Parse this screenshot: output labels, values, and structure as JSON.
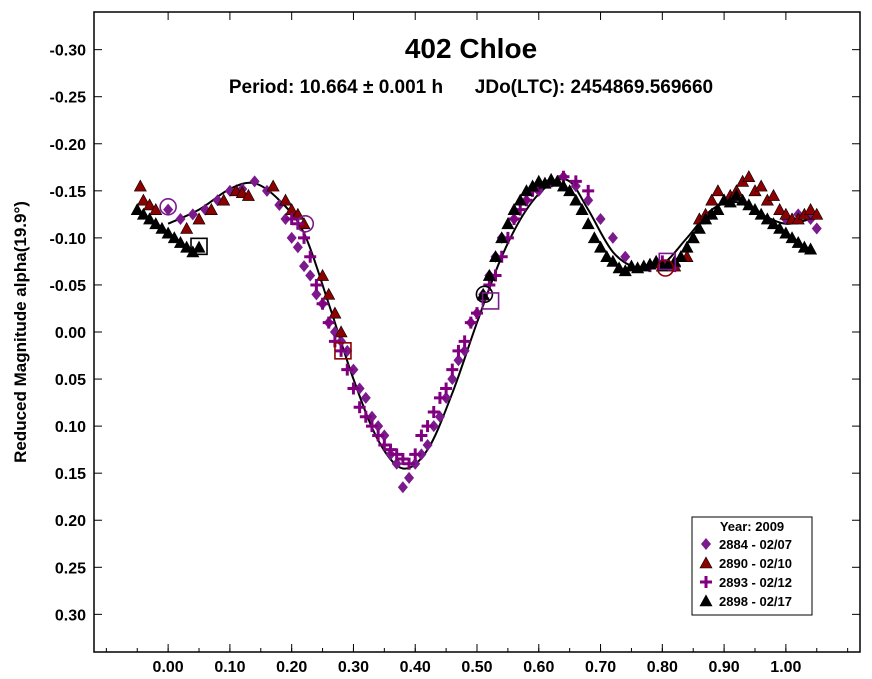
{
  "chart_data": {
    "type": "scatter",
    "title": "402 Chloe",
    "subtitle": "Period: 10.664 ± 0.001 h      JDo(LTC): 2454869.569660",
    "xlabel": "",
    "ylabel": "Reduced Magnitude alpha(19.9°)",
    "xlim": [
      -0.12,
      1.12
    ],
    "ylim": [
      -0.34,
      0.34
    ],
    "y_inverted": true,
    "x_ticks": [
      "0.00",
      "0.10",
      "0.20",
      "0.30",
      "0.40",
      "0.50",
      "0.60",
      "0.70",
      "0.80",
      "0.90",
      "1.00"
    ],
    "y_ticks": [
      "-0.30",
      "-0.25",
      "-0.20",
      "-0.15",
      "-0.10",
      "-0.05",
      "0.00",
      "0.05",
      "0.10",
      "0.15",
      "0.20",
      "0.25",
      "0.30"
    ],
    "grid": false,
    "legend": {
      "title": "Year: 2009",
      "placement": "bottom-right"
    },
    "fit_curve": {
      "color": "#000000",
      "x": [
        0.0,
        0.05,
        0.1,
        0.14,
        0.18,
        0.22,
        0.26,
        0.3,
        0.34,
        0.38,
        0.42,
        0.46,
        0.5,
        0.54,
        0.58,
        0.62,
        0.65,
        0.68,
        0.72,
        0.76,
        0.8,
        0.84,
        0.88,
        0.92,
        0.96,
        1.0,
        1.04
      ],
      "y": [
        -0.115,
        -0.13,
        -0.152,
        -0.158,
        -0.14,
        -0.105,
        -0.03,
        0.05,
        0.115,
        0.145,
        0.125,
        0.065,
        -0.01,
        -0.08,
        -0.13,
        -0.158,
        -0.16,
        -0.13,
        -0.085,
        -0.068,
        -0.072,
        -0.1,
        -0.13,
        -0.138,
        -0.125,
        -0.115,
        -0.12
      ]
    },
    "series": [
      {
        "name": "2884 - 02/07",
        "marker": "diamond",
        "color": "#7b1a8c",
        "x": [
          0.0,
          0.02,
          0.04,
          0.06,
          0.08,
          0.1,
          0.12,
          0.14,
          0.16,
          0.18,
          0.19,
          0.2,
          0.21,
          0.22,
          0.23,
          0.24,
          0.25,
          0.26,
          0.27,
          0.28,
          0.29,
          0.3,
          0.31,
          0.32,
          0.33,
          0.34,
          0.35,
          0.36,
          0.37,
          0.38,
          0.39,
          0.4,
          0.41,
          0.42,
          0.43,
          0.44,
          0.45,
          0.46,
          0.47,
          0.48,
          0.49,
          0.5,
          0.51,
          0.52,
          0.53,
          0.54,
          0.56,
          0.58,
          0.6,
          0.62,
          0.64,
          0.66,
          0.68,
          0.7,
          0.72,
          0.74,
          1.0,
          1.02,
          1.04,
          1.05
        ],
        "y": [
          -0.13,
          -0.12,
          -0.125,
          -0.13,
          -0.14,
          -0.15,
          -0.152,
          -0.16,
          -0.15,
          -0.135,
          -0.12,
          -0.1,
          -0.09,
          -0.07,
          -0.06,
          -0.04,
          -0.03,
          -0.01,
          0.0,
          0.01,
          0.02,
          0.04,
          0.06,
          0.07,
          0.09,
          0.1,
          0.11,
          0.13,
          0.14,
          0.165,
          0.155,
          0.14,
          0.13,
          0.12,
          0.1,
          0.09,
          0.07,
          0.05,
          0.03,
          0.02,
          -0.01,
          -0.02,
          -0.04,
          -0.06,
          -0.08,
          -0.1,
          -0.12,
          -0.14,
          -0.15,
          -0.16,
          -0.165,
          -0.155,
          -0.14,
          -0.12,
          -0.1,
          -0.08,
          -0.12,
          -0.125,
          -0.12,
          -0.11
        ]
      },
      {
        "name": "2890 - 02/10",
        "marker": "triangle",
        "color": "#8b0000",
        "x": [
          -0.045,
          -0.04,
          -0.03,
          -0.02,
          0.03,
          0.05,
          0.07,
          0.09,
          0.11,
          0.12,
          0.13,
          0.17,
          0.19,
          0.2,
          0.21,
          0.22,
          0.25,
          0.26,
          0.27,
          0.28,
          0.82,
          0.84,
          0.85,
          0.86,
          0.87,
          0.88,
          0.89,
          0.9,
          0.91,
          0.92,
          0.93,
          0.94,
          0.95,
          0.96,
          0.97,
          0.98,
          0.99,
          1.0,
          1.01,
          1.02,
          1.03,
          1.04,
          1.05
        ],
        "y": [
          -0.155,
          -0.14,
          -0.135,
          -0.13,
          -0.11,
          -0.12,
          -0.13,
          -0.14,
          -0.15,
          -0.148,
          -0.145,
          -0.155,
          -0.14,
          -0.13,
          -0.125,
          -0.115,
          -0.06,
          -0.04,
          -0.02,
          0.0,
          -0.07,
          -0.08,
          -0.1,
          -0.12,
          -0.125,
          -0.14,
          -0.15,
          -0.14,
          -0.145,
          -0.15,
          -0.16,
          -0.165,
          -0.15,
          -0.155,
          -0.14,
          -0.145,
          -0.13,
          -0.125,
          -0.12,
          -0.12,
          -0.125,
          -0.13,
          -0.125
        ]
      },
      {
        "name": "2893 - 02/12",
        "marker": "plus",
        "color": "#800080",
        "x": [
          0.2,
          0.21,
          0.22,
          0.23,
          0.24,
          0.25,
          0.26,
          0.27,
          0.28,
          0.29,
          0.3,
          0.31,
          0.32,
          0.33,
          0.34,
          0.35,
          0.36,
          0.37,
          0.38,
          0.39,
          0.4,
          0.41,
          0.42,
          0.43,
          0.44,
          0.45,
          0.46,
          0.47,
          0.48,
          0.49,
          0.5,
          0.51,
          0.52,
          0.53,
          0.54,
          0.55,
          0.56,
          0.57,
          0.58,
          0.59,
          0.6,
          0.62,
          0.64,
          0.66,
          0.68,
          0.78,
          0.8,
          0.82
        ],
        "y": [
          -0.12,
          -0.115,
          -0.1,
          -0.08,
          -0.05,
          -0.03,
          -0.01,
          0.01,
          0.02,
          0.04,
          0.06,
          0.08,
          0.09,
          0.1,
          0.11,
          0.12,
          0.125,
          0.13,
          0.135,
          0.14,
          0.13,
          0.11,
          0.1,
          0.085,
          0.07,
          0.06,
          0.04,
          0.02,
          0.01,
          -0.01,
          -0.02,
          -0.035,
          -0.05,
          -0.06,
          -0.08,
          -0.1,
          -0.12,
          -0.13,
          -0.14,
          -0.15,
          -0.155,
          -0.16,
          -0.165,
          -0.16,
          -0.15,
          -0.07,
          -0.075,
          -0.07
        ]
      },
      {
        "name": "2898 - 02/17",
        "marker": "triangle",
        "color": "#000000",
        "x": [
          -0.05,
          -0.04,
          -0.03,
          -0.02,
          -0.01,
          0.0,
          0.01,
          0.02,
          0.03,
          0.04,
          0.05,
          0.51,
          0.52,
          0.53,
          0.54,
          0.55,
          0.56,
          0.57,
          0.58,
          0.59,
          0.6,
          0.61,
          0.62,
          0.63,
          0.64,
          0.65,
          0.66,
          0.67,
          0.68,
          0.69,
          0.7,
          0.71,
          0.72,
          0.73,
          0.74,
          0.75,
          0.76,
          0.77,
          0.78,
          0.79,
          0.8,
          0.81,
          0.82,
          0.83,
          0.84,
          0.85,
          0.86,
          0.87,
          0.88,
          0.89,
          0.9,
          0.91,
          0.92,
          0.93,
          0.94,
          0.95,
          0.96,
          0.97,
          0.98,
          0.99,
          1.0,
          1.01,
          1.02,
          1.03,
          1.04
        ],
        "y": [
          -0.13,
          -0.125,
          -0.12,
          -0.115,
          -0.11,
          -0.105,
          -0.1,
          -0.095,
          -0.09,
          -0.085,
          -0.09,
          -0.04,
          -0.06,
          -0.08,
          -0.1,
          -0.115,
          -0.13,
          -0.14,
          -0.15,
          -0.155,
          -0.16,
          -0.158,
          -0.162,
          -0.16,
          -0.155,
          -0.15,
          -0.14,
          -0.13,
          -0.115,
          -0.1,
          -0.09,
          -0.08,
          -0.075,
          -0.068,
          -0.065,
          -0.07,
          -0.068,
          -0.07,
          -0.072,
          -0.075,
          -0.07,
          -0.072,
          -0.075,
          -0.08,
          -0.09,
          -0.1,
          -0.11,
          -0.12,
          -0.125,
          -0.13,
          -0.14,
          -0.138,
          -0.145,
          -0.14,
          -0.135,
          -0.13,
          -0.125,
          -0.12,
          -0.115,
          -0.11,
          -0.105,
          -0.1,
          -0.095,
          -0.09,
          -0.088
        ]
      }
    ],
    "open_markers": [
      {
        "shape": "circle",
        "color": "#7b1a8c",
        "x": 0.0,
        "y": -0.133
      },
      {
        "shape": "square",
        "color": "#000000",
        "x": 0.05,
        "y": -0.091
      },
      {
        "shape": "circle",
        "color": "#7b1a8c",
        "x": 0.222,
        "y": -0.115
      },
      {
        "shape": "square",
        "color": "#8b0000",
        "x": 0.283,
        "y": 0.02
      },
      {
        "shape": "circle",
        "color": "#000000",
        "x": 0.512,
        "y": -0.04
      },
      {
        "shape": "square",
        "color": "#7b1a8c",
        "x": 0.522,
        "y": -0.033
      },
      {
        "shape": "square",
        "color": "#7b1a8c",
        "x": 0.808,
        "y": -0.075
      },
      {
        "shape": "circle",
        "color": "#8b0000",
        "x": 0.805,
        "y": -0.068
      }
    ]
  }
}
